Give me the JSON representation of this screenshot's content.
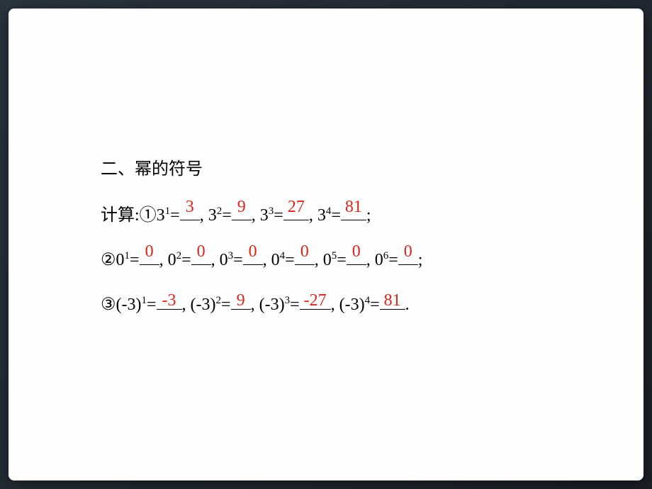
{
  "heading": "二、幂的符号",
  "prompt": "计算:",
  "circled": {
    "one": "①",
    "two": "②",
    "three": "③"
  },
  "row1": {
    "items": [
      {
        "base": "3",
        "exp": "1",
        "ans": "3",
        "w": ""
      },
      {
        "base": "3",
        "exp": "2",
        "ans": "9",
        "w": ""
      },
      {
        "base": "3",
        "exp": "3",
        "ans": "27",
        "w": "w2"
      },
      {
        "base": "3",
        "exp": "4",
        "ans": "81",
        "w": "w2"
      }
    ],
    "end": ";"
  },
  "row2": {
    "items": [
      {
        "base": "0",
        "exp": "1",
        "ans": "0",
        "w": ""
      },
      {
        "base": "0",
        "exp": "2",
        "ans": "0",
        "w": ""
      },
      {
        "base": "0",
        "exp": "3",
        "ans": "0",
        "w": ""
      },
      {
        "base": "0",
        "exp": "4",
        "ans": "0",
        "w": ""
      },
      {
        "base": "0",
        "exp": "5",
        "ans": "0",
        "w": ""
      },
      {
        "base": "0",
        "exp": "6",
        "ans": "0",
        "w": ""
      }
    ],
    "end": ";"
  },
  "row3": {
    "items": [
      {
        "base": "(-3)",
        "exp": "1",
        "ans": "-3",
        "w": "w2"
      },
      {
        "base": "(-3)",
        "exp": "2",
        "ans": "9",
        "w": ""
      },
      {
        "base": "(-3)",
        "exp": "3",
        "ans": "-27",
        "w": "w3"
      },
      {
        "base": "(-3)",
        "exp": "4",
        "ans": "81",
        "w": "w2"
      }
    ],
    "end": "."
  },
  "colors": {
    "answer": "#d9261c",
    "text": "#000000",
    "slide_bg": "#fdfefd"
  }
}
